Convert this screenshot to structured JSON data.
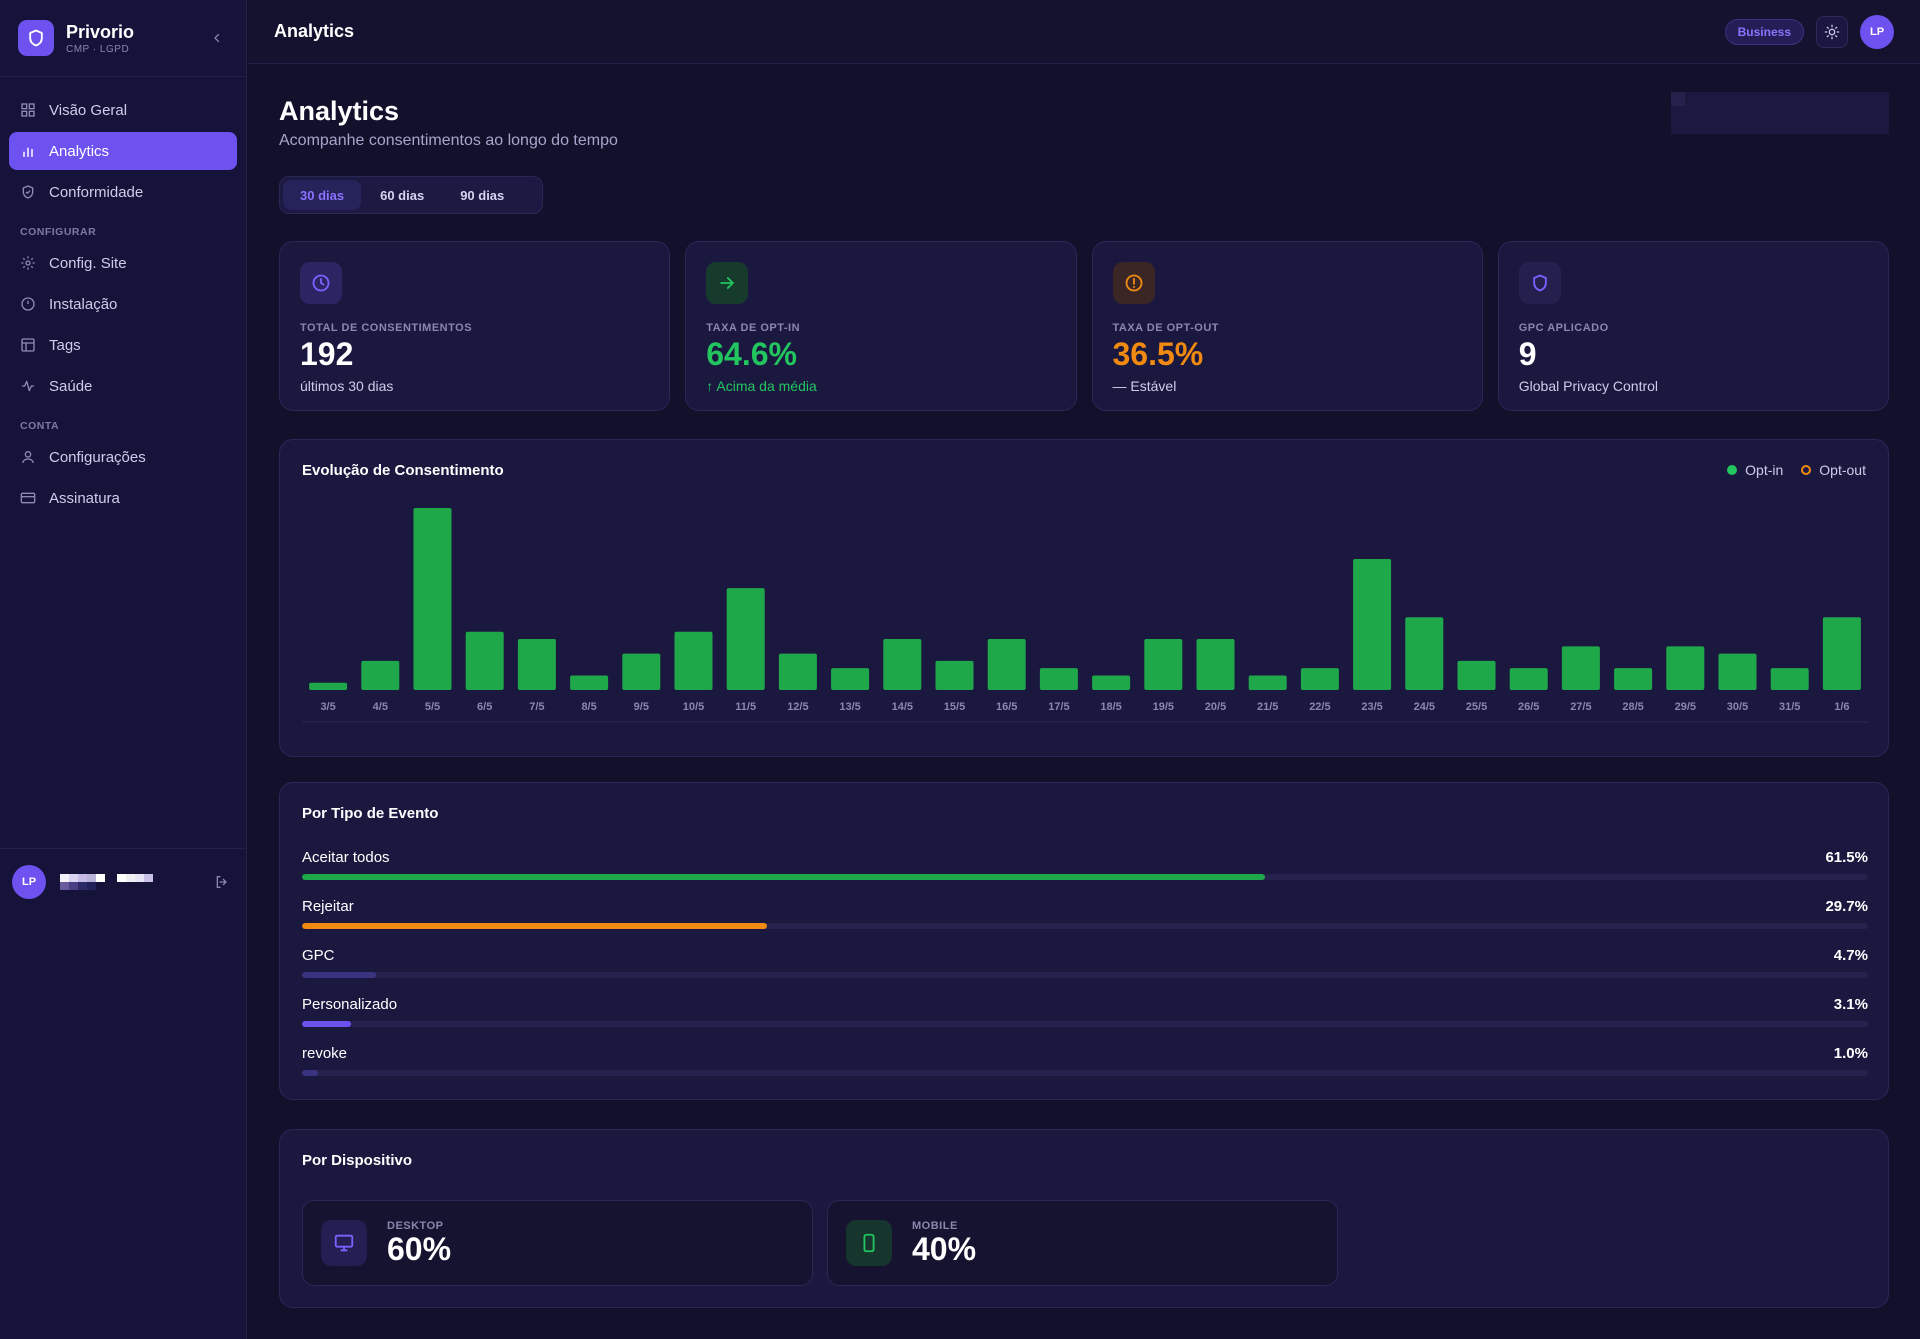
{
  "brand": {
    "name": "Privorio",
    "subtitle": "CMP · LGPD"
  },
  "sidebar": {
    "items": [
      {
        "label": "Visão Geral",
        "icon": "grid-icon",
        "active": false
      },
      {
        "label": "Analytics",
        "icon": "bar-chart-icon",
        "active": true
      },
      {
        "label": "Conformidade",
        "icon": "shield-check-icon",
        "active": false
      }
    ],
    "section_configure": "CONFIGURAR",
    "configure_items": [
      {
        "label": "Config. Site",
        "icon": "gear-icon"
      },
      {
        "label": "Instalação",
        "icon": "circle-icon"
      },
      {
        "label": "Tags",
        "icon": "tag-table-icon"
      },
      {
        "label": "Saúde",
        "icon": "pulse-icon"
      }
    ],
    "section_account": "CONTA",
    "account_items": [
      {
        "label": "Configurações",
        "icon": "user-icon"
      },
      {
        "label": "Assinatura",
        "icon": "credit-card-icon"
      }
    ],
    "user_initials": "LP"
  },
  "topbar": {
    "title": "Analytics",
    "plan": "Business",
    "user_initials": "LP"
  },
  "page": {
    "title": "Analytics",
    "subtitle": "Acompanhe consentimentos ao longo do tempo",
    "tabs": [
      "30 dias",
      "60 dias",
      "90 dias"
    ],
    "active_tab": "30 dias"
  },
  "stats": [
    {
      "label": "TOTAL DE CONSENTIMENTOS",
      "value": "192",
      "note": "últimos 30 dias",
      "icon": "clock-icon",
      "color": "#7b61ff"
    },
    {
      "label": "TAXA DE OPT-IN",
      "value": "64.6%",
      "note": "↑ Acima da média",
      "icon": "arrow-right-icon",
      "color": "#22c55e"
    },
    {
      "label": "TAXA DE OPT-OUT",
      "value": "36.5%",
      "note": "— Estável",
      "icon": "alert-circle-icon",
      "color": "#f08a10"
    },
    {
      "label": "GPC APLICADO",
      "value": "9",
      "note": "Global Privacy Control",
      "icon": "shield-icon",
      "color": "#7b61ff"
    }
  ],
  "evolution": {
    "title": "Evolução de Consentimento",
    "legend": [
      {
        "name": "Opt-in",
        "color": "#22c55e",
        "filled": true
      },
      {
        "name": "Opt-out",
        "color": "#f08a10",
        "filled": false
      }
    ]
  },
  "chart_data": {
    "type": "bar",
    "title": "Evolução de Consentimento",
    "categories": [
      "3/5",
      "4/5",
      "5/5",
      "6/5",
      "7/5",
      "8/5",
      "9/5",
      "10/5",
      "11/5",
      "12/5",
      "13/5",
      "14/5",
      "15/5",
      "16/5",
      "17/5",
      "18/5",
      "19/5",
      "20/5",
      "21/5",
      "22/5",
      "23/5",
      "24/5",
      "25/5",
      "26/5",
      "27/5",
      "28/5",
      "29/5",
      "30/5",
      "31/5",
      "1/6"
    ],
    "series": [
      {
        "name": "Opt-in",
        "color": "#1fa84a",
        "values": [
          1,
          4,
          25,
          8,
          7,
          2,
          5,
          8,
          14,
          5,
          3,
          7,
          4,
          7,
          3,
          2,
          7,
          7,
          2,
          3,
          18,
          10,
          4,
          3,
          6,
          3,
          6,
          5,
          3,
          10
        ]
      }
    ],
    "ylim": [
      0,
      25
    ],
    "grid": false,
    "legend_position": "top-right"
  },
  "events": {
    "title": "Por Tipo de Evento",
    "items": [
      {
        "label": "Aceitar todos",
        "pct_label": "61.5%",
        "pct": 61.5,
        "color": "#1fa84a"
      },
      {
        "label": "Rejeitar",
        "pct_label": "29.7%",
        "pct": 29.7,
        "color": "#f08a10"
      },
      {
        "label": "GPC",
        "pct_label": "4.7%",
        "pct": 4.7,
        "color": "#3a3380"
      },
      {
        "label": "Personalizado",
        "pct_label": "3.1%",
        "pct": 3.1,
        "color": "#6d52f0"
      },
      {
        "label": "revoke",
        "pct_label": "1.0%",
        "pct": 1.0,
        "color": "#3a3380"
      }
    ]
  },
  "devices": {
    "title": "Por Dispositivo",
    "items": [
      {
        "label": "DESKTOP",
        "value": "60%",
        "icon": "monitor-icon",
        "color": "#7b61ff"
      },
      {
        "label": "MOBILE",
        "value": "40%",
        "icon": "smartphone-icon",
        "color": "#22c55e"
      }
    ]
  }
}
